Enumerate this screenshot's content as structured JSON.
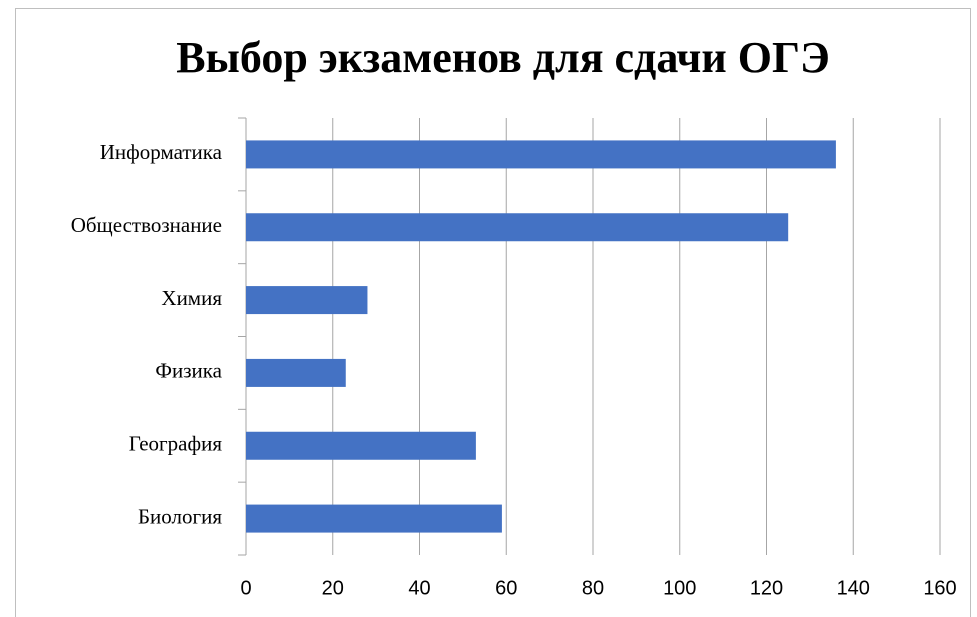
{
  "chart_data": {
    "type": "bar",
    "orientation": "horizontal",
    "title": "Выбор экзаменов для сдачи ОГЭ",
    "categories": [
      "Информатика",
      "Обществознание",
      "Химия",
      "Физика",
      "География",
      "Биология"
    ],
    "values": [
      136,
      125,
      28,
      23,
      53,
      59
    ],
    "color": "#4472c4",
    "xlim": [
      0,
      160
    ],
    "xticks": [
      0,
      20,
      40,
      60,
      80,
      100,
      120,
      140,
      160
    ],
    "grid": true
  }
}
